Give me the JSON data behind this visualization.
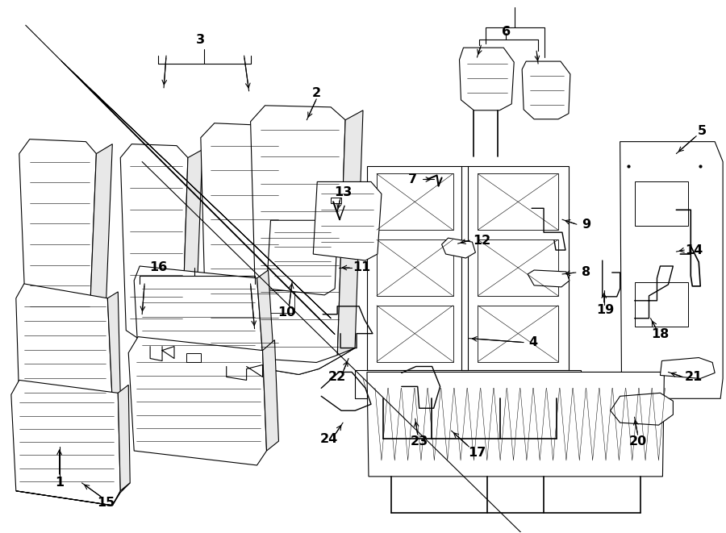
{
  "bg_color": "#ffffff",
  "line_color": "#000000",
  "lw": 0.8,
  "fig_width": 9.0,
  "fig_height": 6.61,
  "dpi": 100
}
